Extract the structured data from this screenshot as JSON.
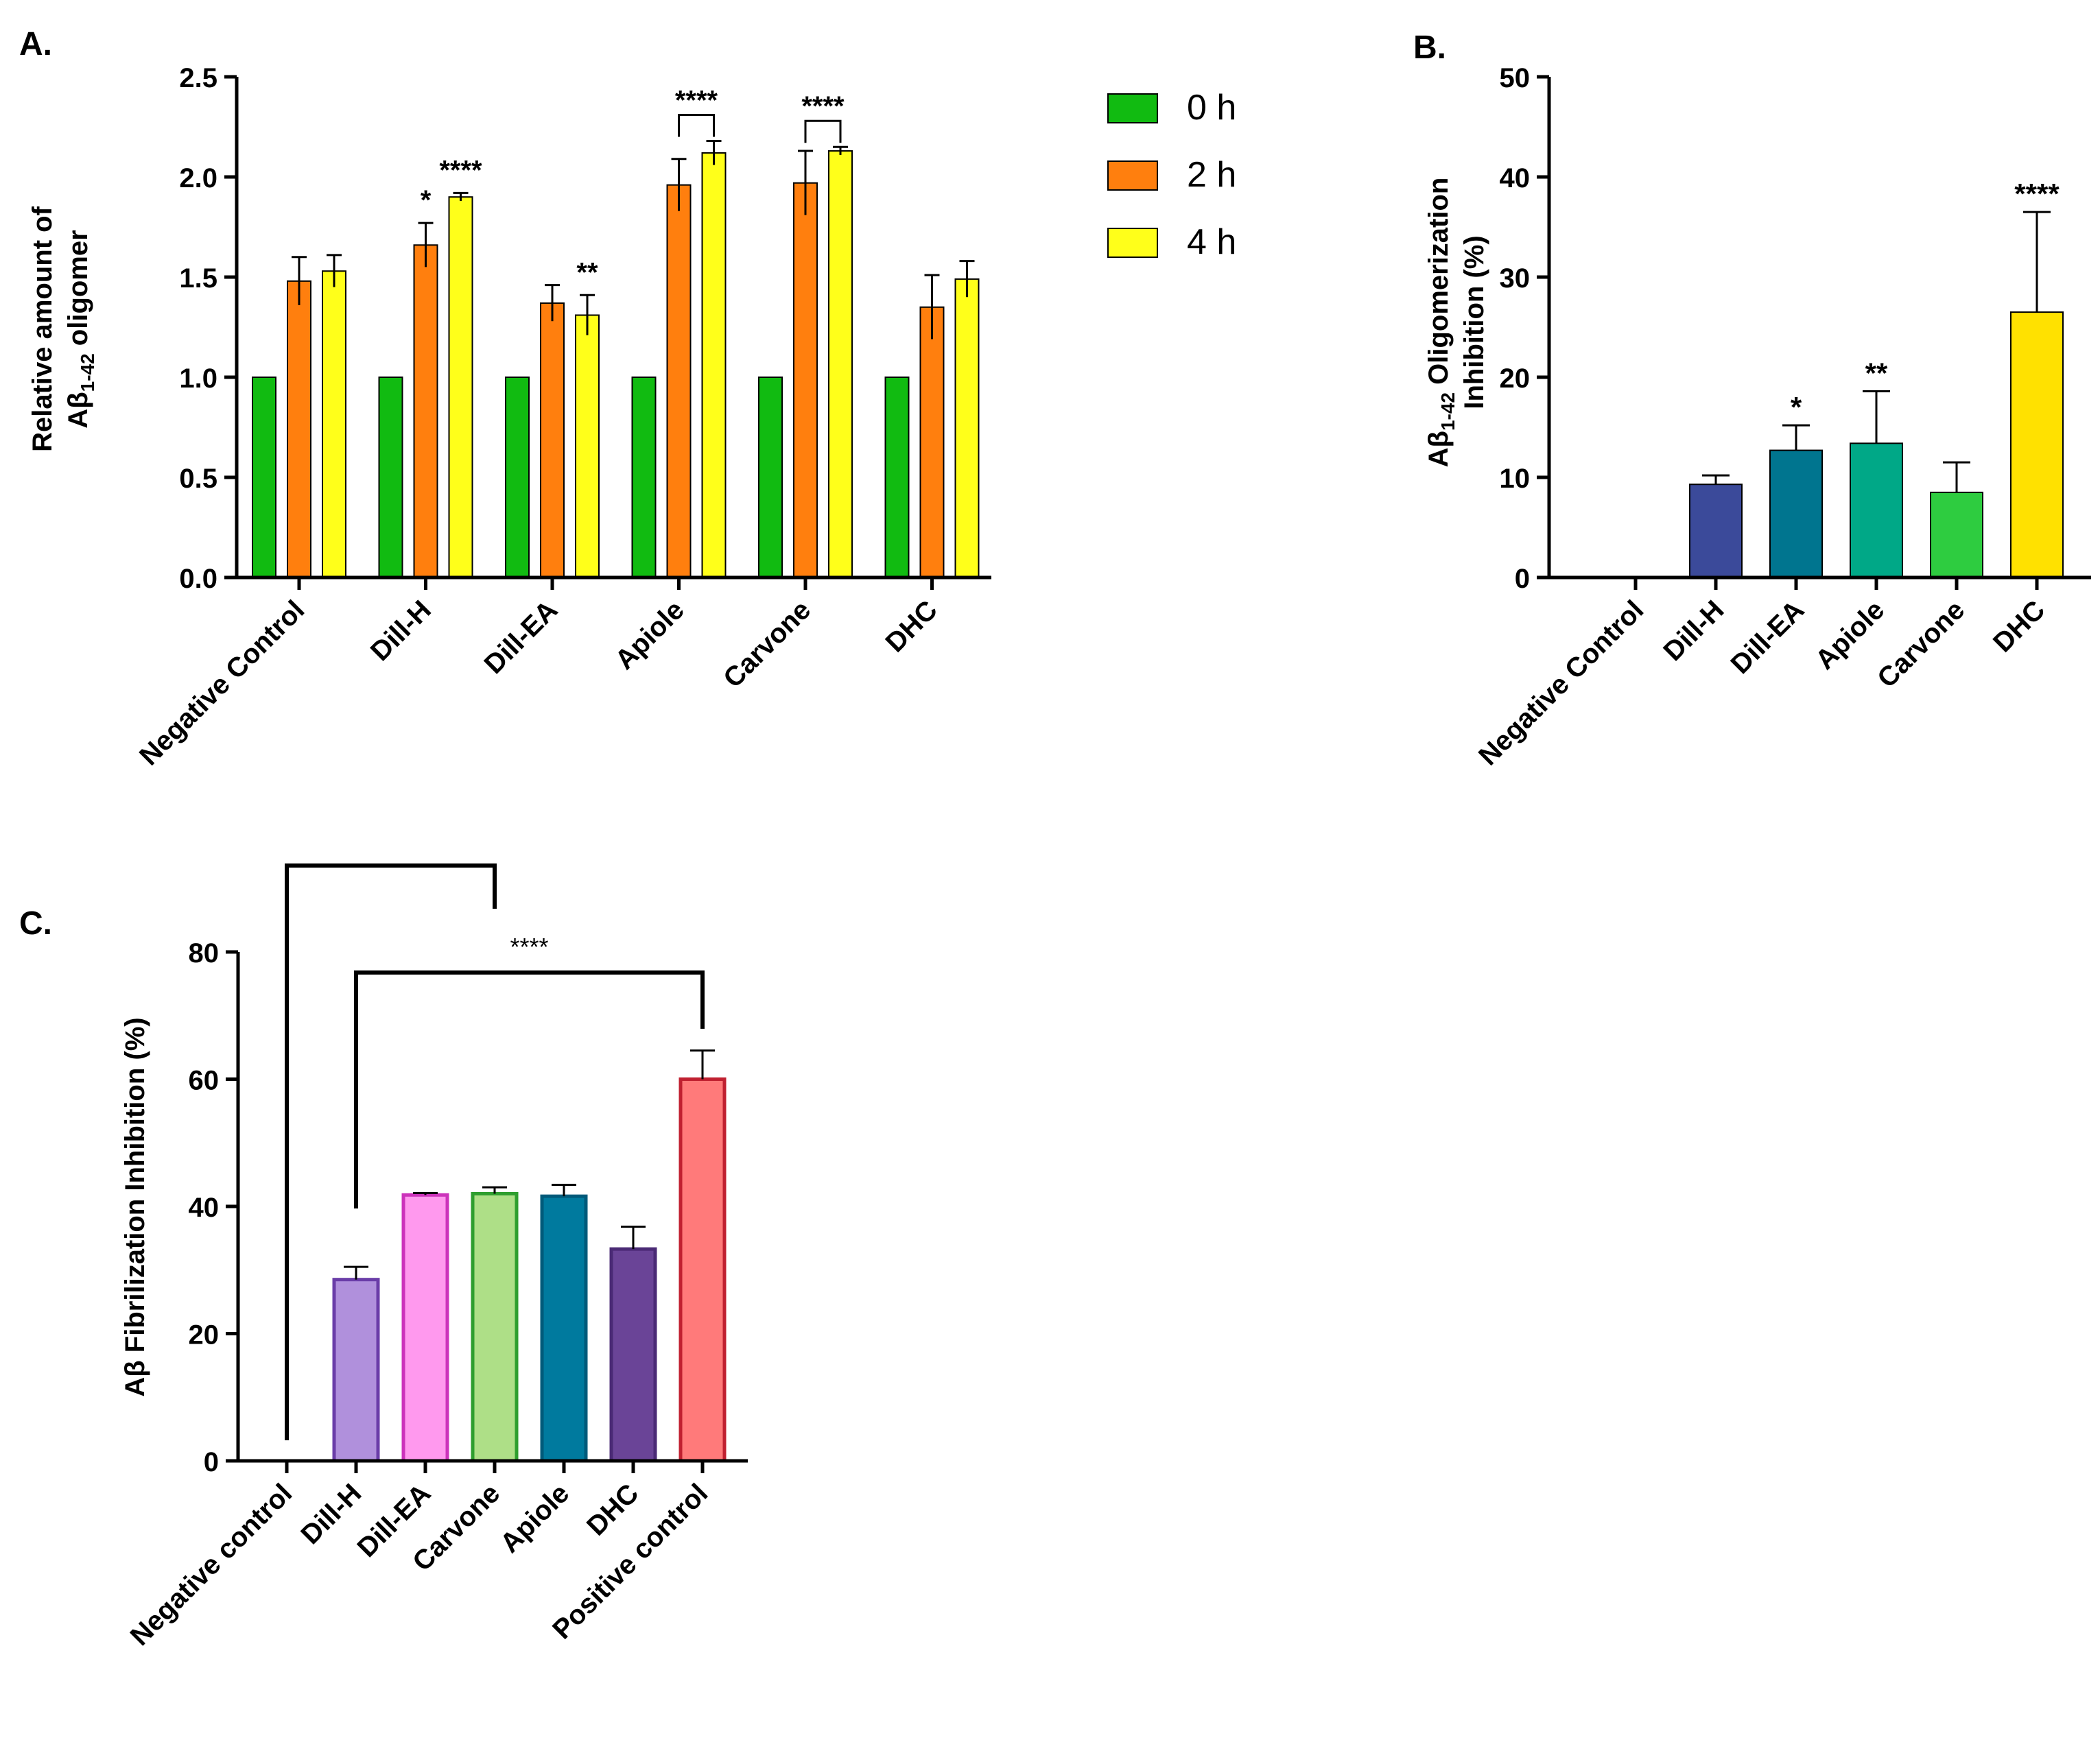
{
  "chart_data": [
    {
      "id": "A",
      "type": "bar",
      "panel_label": "A.",
      "ylabel_line1": "Relative amount of",
      "ylabel_line2_prefix": "Aβ",
      "ylabel_line2_sub": "1-42",
      "ylabel_line2_suffix": " oligomer",
      "ylim": [
        0,
        2.5
      ],
      "yticks": [
        "0.0",
        "0.5",
        "1.0",
        "1.5",
        "2.0",
        "2.5"
      ],
      "categories": [
        "Negative Control",
        "Dill-H",
        "Dill-EA",
        "Apiole",
        "Carvone",
        "DHC"
      ],
      "series": [
        {
          "name": "0 h",
          "color": "#11BB11",
          "values": [
            1,
            1,
            1,
            1,
            1,
            1
          ],
          "errors": [
            0,
            0,
            0,
            0,
            0,
            0
          ]
        },
        {
          "name": "2 h",
          "color": "#FF7F0E",
          "values": [
            1.48,
            1.66,
            1.37,
            1.96,
            1.97,
            1.35
          ],
          "errors": [
            0.12,
            0.11,
            0.09,
            0.13,
            0.16,
            0.16
          ]
        },
        {
          "name": "4 h",
          "color": "#FFFF1A",
          "values": [
            1.53,
            1.9,
            1.31,
            2.12,
            2.13,
            1.49
          ],
          "errors": [
            0.08,
            0.02,
            0.1,
            0.06,
            0.02,
            0.09
          ]
        }
      ],
      "legend": [
        "0 h",
        "2 h",
        "4 h"
      ],
      "annotations": [
        {
          "text": "*",
          "category": 1,
          "series": 1
        },
        {
          "text": "****",
          "category": 1,
          "series": 2
        },
        {
          "text": "**",
          "category": 2,
          "series": 2
        },
        {
          "text": "****",
          "category": 3,
          "bracket": true
        },
        {
          "text": "****",
          "category": 4,
          "bracket": true
        }
      ]
    },
    {
      "id": "B",
      "type": "bar",
      "panel_label": "B.",
      "ylabel_line1_prefix": "Aβ",
      "ylabel_line1_sub": "1-42",
      "ylabel_line1_suffix": " Oligomerization",
      "ylabel_line2": "Inhibition (%)",
      "ylim": [
        0,
        50
      ],
      "yticks": [
        "0",
        "10",
        "20",
        "30",
        "40",
        "50"
      ],
      "categories": [
        "Negative Control",
        "Dill-H",
        "Dill-EA",
        "Apiole",
        "Carvone",
        "DHC"
      ],
      "values": [
        0,
        9.3,
        12.7,
        13.4,
        8.5,
        26.5
      ],
      "errors": [
        0,
        0.9,
        2.5,
        5.2,
        3.0,
        10.0
      ],
      "colors": [
        "#3B4A9A",
        "#3B4A9A",
        "#00758F",
        "#00A887",
        "#2ECC40",
        "#FFE100"
      ],
      "annotations": [
        {
          "text": "*",
          "category": 2
        },
        {
          "text": "**",
          "category": 3
        },
        {
          "text": "****",
          "category": 5
        }
      ]
    },
    {
      "id": "C",
      "type": "bar",
      "panel_label": "C.",
      "ylabel": "Aβ Fibrilization Inhibition (%)",
      "ylim": [
        0,
        80
      ],
      "yticks": [
        "0",
        "20",
        "40",
        "60",
        "80"
      ],
      "categories": [
        "Negative control",
        "Dill-H",
        "Dill-EA",
        "Carvone",
        "Apiole",
        "DHC",
        "Positive control"
      ],
      "values": [
        0,
        28.5,
        41.8,
        42.0,
        41.6,
        33.3,
        60.0
      ],
      "errors": [
        0,
        2.0,
        0.3,
        1.0,
        1.8,
        3.5,
        4.5
      ],
      "fills": [
        "#B090DC",
        "#B090DC",
        "#FF99EE",
        "#AEDF87",
        "#007A9E",
        "#6A4497",
        "#FF7A7A"
      ],
      "strokes": [
        "#6A3DA8",
        "#6A3DA8",
        "#CC33BB",
        "#2E9E2E",
        "#005A7A",
        "#4A2A75",
        "#C02030"
      ],
      "annotations": [
        {
          "text": "****"
        }
      ]
    }
  ]
}
